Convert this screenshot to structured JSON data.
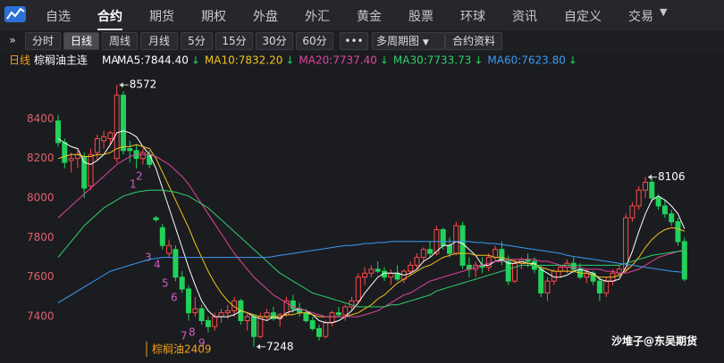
{
  "nav": {
    "tabs": [
      "自选",
      "合约",
      "期货",
      "期权",
      "外盘",
      "外汇",
      "黄金",
      "股票",
      "环球",
      "资讯",
      "自定义",
      "交易"
    ]
  },
  "toolbar": {
    "buttons": [
      "分时",
      "日线",
      "周线",
      "月线",
      "5分",
      "15分",
      "30分",
      "60分"
    ],
    "multi": "多周期图",
    "info": "合约资料"
  },
  "chart_info": {
    "period": "日线",
    "symbol": "棕榈油主连",
    "ma_prefix": "MA"
  },
  "chart_data": {
    "type": "candlestick",
    "up_color": "#ff4a4a",
    "down_color": "#22d15a",
    "ylim": [
      7220,
      8600
    ],
    "yticks": [
      7400,
      7600,
      7800,
      8000,
      8200,
      8400
    ],
    "open": [
      8390,
      8280,
      8190,
      8200,
      8210,
      8060,
      8230,
      8290,
      8300,
      8200,
      8520,
      8250,
      8240,
      8200,
      8220,
      7900,
      7850,
      7720,
      7740,
      7600,
      7540,
      7420,
      7440,
      7380,
      7350,
      7400,
      7420,
      7430,
      7480,
      7380,
      7400,
      7300,
      7400,
      7420,
      7390,
      7410,
      7480,
      7440,
      7420,
      7380,
      7340,
      7300,
      7370,
      7420,
      7410,
      7450,
      7480,
      7600,
      7620,
      7640,
      7630,
      7600,
      7620,
      7590,
      7630,
      7660,
      7700,
      7740,
      7720,
      7840,
      7760,
      7720,
      7860,
      7660,
      7640,
      7660,
      7650,
      7700,
      7740,
      7680,
      7580,
      7670,
      7690,
      7680,
      7640,
      7520,
      7580,
      7630,
      7650,
      7670,
      7640,
      7600,
      7620,
      7580,
      7520,
      7580,
      7620,
      7640,
      7900,
      7960,
      8040,
      8080,
      8000,
      7960,
      7920,
      7880,
      7780
    ],
    "high": [
      8420,
      8300,
      8230,
      8240,
      8230,
      8250,
      8320,
      8340,
      8340,
      8572,
      8540,
      8290,
      8270,
      8250,
      8240,
      7910,
      7870,
      7790,
      7760,
      7630,
      7560,
      7500,
      7460,
      7400,
      7420,
      7440,
      7460,
      7500,
      7490,
      7420,
      7410,
      7420,
      7440,
      7450,
      7420,
      7500,
      7510,
      7470,
      7440,
      7400,
      7360,
      7380,
      7430,
      7450,
      7460,
      7500,
      7620,
      7650,
      7660,
      7680,
      7650,
      7640,
      7660,
      7640,
      7680,
      7720,
      7750,
      7780,
      7860,
      7850,
      7800,
      7880,
      7880,
      7700,
      7680,
      7700,
      7720,
      7760,
      7780,
      7710,
      7690,
      7700,
      7720,
      7700,
      7660,
      7600,
      7640,
      7660,
      7690,
      7700,
      7670,
      7640,
      7630,
      7600,
      7600,
      7640,
      7660,
      7920,
      7980,
      8060,
      8106,
      8100,
      8020,
      7990,
      7940,
      7900,
      7800
    ],
    "low": [
      8260,
      8150,
      8130,
      8150,
      8000,
      8040,
      8190,
      8250,
      8270,
      8180,
      8220,
      8180,
      8150,
      8170,
      8150,
      7880,
      7740,
      7700,
      7580,
      7520,
      7380,
      7400,
      7360,
      7320,
      7330,
      7370,
      7390,
      7400,
      7360,
      7330,
      7248,
      7290,
      7380,
      7380,
      7350,
      7400,
      7420,
      7400,
      7370,
      7330,
      7280,
      7290,
      7350,
      7400,
      7380,
      7430,
      7470,
      7560,
      7600,
      7620,
      7580,
      7560,
      7580,
      7570,
      7610,
      7640,
      7680,
      7700,
      7710,
      7740,
      7700,
      7710,
      7640,
      7600,
      7600,
      7620,
      7630,
      7680,
      7660,
      7560,
      7570,
      7640,
      7650,
      7620,
      7500,
      7480,
      7560,
      7600,
      7620,
      7620,
      7590,
      7570,
      7560,
      7480,
      7500,
      7560,
      7600,
      7630,
      7880,
      7940,
      8000,
      7980,
      7940,
      7900,
      7860,
      7760,
      7580
    ],
    "close": [
      8280,
      8180,
      8200,
      8220,
      8050,
      8220,
      8300,
      8310,
      8330,
      8520,
      8240,
      8240,
      8200,
      8230,
      8170,
      7890,
      7760,
      7760,
      7600,
      7540,
      7420,
      7440,
      7380,
      7350,
      7400,
      7420,
      7430,
      7480,
      7380,
      7400,
      7300,
      7400,
      7420,
      7390,
      7410,
      7480,
      7440,
      7420,
      7380,
      7340,
      7300,
      7370,
      7420,
      7410,
      7450,
      7480,
      7600,
      7620,
      7640,
      7630,
      7600,
      7620,
      7590,
      7630,
      7660,
      7700,
      7740,
      7720,
      7840,
      7760,
      7720,
      7860,
      7660,
      7640,
      7660,
      7650,
      7700,
      7740,
      7680,
      7580,
      7670,
      7690,
      7680,
      7640,
      7520,
      7580,
      7630,
      7650,
      7670,
      7640,
      7600,
      7620,
      7580,
      7520,
      7580,
      7620,
      7640,
      7900,
      7960,
      8040,
      8080,
      8000,
      7960,
      7920,
      7880,
      7780,
      7590
    ],
    "series": [
      {
        "name": "MA5:7844.40",
        "color": "#ffffff",
        "values": [
          8300,
          8280,
          8260,
          8250,
          8180,
          8170,
          8190,
          8220,
          8270,
          8330,
          8340,
          8330,
          8310,
          8260,
          8220,
          8150,
          8050,
          7950,
          7850,
          7750,
          7650,
          7560,
          7480,
          7430,
          7400,
          7400,
          7400,
          7410,
          7430,
          7420,
          7400,
          7390,
          7380,
          7400,
          7390,
          7420,
          7430,
          7440,
          7430,
          7410,
          7380,
          7370,
          7370,
          7380,
          7400,
          7430,
          7470,
          7520,
          7560,
          7600,
          7620,
          7620,
          7620,
          7610,
          7620,
          7640,
          7680,
          7700,
          7730,
          7760,
          7760,
          7780,
          7770,
          7740,
          7710,
          7660,
          7660,
          7680,
          7690,
          7670,
          7670,
          7680,
          7670,
          7670,
          7640,
          7620,
          7600,
          7600,
          7610,
          7630,
          7640,
          7630,
          7620,
          7590,
          7580,
          7580,
          7590,
          7650,
          7730,
          7830,
          7920,
          7990,
          8010,
          7990,
          7960,
          7920,
          7844.4
        ]
      },
      {
        "name": "MA10:7832.20",
        "color": "#f2c41d",
        "values": [
          8200,
          8210,
          8220,
          8220,
          8210,
          8210,
          8220,
          8220,
          8230,
          8250,
          8260,
          8260,
          8270,
          8260,
          8250,
          8200,
          8130,
          8060,
          7990,
          7920,
          7850,
          7770,
          7700,
          7630,
          7570,
          7520,
          7480,
          7450,
          7430,
          7420,
          7410,
          7400,
          7400,
          7400,
          7400,
          7410,
          7410,
          7420,
          7420,
          7410,
          7400,
          7400,
          7400,
          7400,
          7400,
          7410,
          7420,
          7440,
          7460,
          7490,
          7510,
          7540,
          7570,
          7590,
          7610,
          7630,
          7650,
          7660,
          7680,
          7700,
          7710,
          7720,
          7720,
          7720,
          7710,
          7710,
          7710,
          7700,
          7700,
          7690,
          7680,
          7670,
          7670,
          7660,
          7650,
          7640,
          7630,
          7630,
          7630,
          7630,
          7620,
          7620,
          7610,
          7600,
          7600,
          7600,
          7610,
          7630,
          7660,
          7700,
          7750,
          7790,
          7820,
          7840,
          7850,
          7845,
          7832.2
        ]
      },
      {
        "name": "MA20:7737.40",
        "color": "#e0449f",
        "values": [
          7900,
          7930,
          7960,
          7990,
          8020,
          8050,
          8080,
          8110,
          8140,
          8170,
          8190,
          8210,
          8220,
          8220,
          8220,
          8210,
          8190,
          8170,
          8140,
          8110,
          8070,
          8020,
          7970,
          7920,
          7870,
          7820,
          7770,
          7720,
          7680,
          7640,
          7600,
          7570,
          7540,
          7510,
          7490,
          7470,
          7450,
          7440,
          7430,
          7420,
          7410,
          7400,
          7400,
          7400,
          7400,
          7400,
          7400,
          7410,
          7420,
          7430,
          7450,
          7470,
          7490,
          7510,
          7520,
          7540,
          7560,
          7580,
          7590,
          7600,
          7610,
          7620,
          7630,
          7640,
          7650,
          7660,
          7670,
          7680,
          7680,
          7690,
          7690,
          7690,
          7690,
          7690,
          7680,
          7680,
          7670,
          7660,
          7650,
          7650,
          7650,
          7640,
          7640,
          7640,
          7630,
          7630,
          7620,
          7620,
          7630,
          7640,
          7660,
          7680,
          7700,
          7710,
          7720,
          7730,
          7737.4
        ]
      },
      {
        "name": "MA30:7733.73",
        "color": "#2fcf6c",
        "values": [
          7700,
          7740,
          7780,
          7820,
          7860,
          7890,
          7920,
          7950,
          7970,
          7990,
          8010,
          8020,
          8030,
          8035,
          8040,
          8040,
          8040,
          8035,
          8030,
          8020,
          8010,
          7990,
          7970,
          7950,
          7920,
          7890,
          7860,
          7830,
          7800,
          7770,
          7740,
          7710,
          7680,
          7650,
          7620,
          7600,
          7580,
          7560,
          7540,
          7520,
          7510,
          7500,
          7490,
          7480,
          7470,
          7460,
          7450,
          7450,
          7450,
          7450,
          7450,
          7460,
          7460,
          7470,
          7480,
          7490,
          7500,
          7510,
          7530,
          7540,
          7550,
          7560,
          7570,
          7580,
          7590,
          7600,
          7610,
          7620,
          7630,
          7640,
          7650,
          7660,
          7660,
          7660,
          7660,
          7660,
          7660,
          7660,
          7660,
          7660,
          7660,
          7660,
          7660,
          7660,
          7660,
          7660,
          7660,
          7670,
          7680,
          7690,
          7700,
          7710,
          7715,
          7720,
          7725,
          7730,
          7733.73
        ]
      },
      {
        "name": "MA60:7623.80",
        "color": "#3a9cf5",
        "values": [
          7470,
          7490,
          7510,
          7530,
          7550,
          7570,
          7590,
          7610,
          7630,
          7640,
          7650,
          7660,
          7670,
          7680,
          7690,
          7695,
          7700,
          7700,
          7700,
          7700,
          7700,
          7700,
          7700,
          7700,
          7700,
          7700,
          7700,
          7700,
          7700,
          7700,
          7700,
          7700,
          7700,
          7705,
          7710,
          7715,
          7720,
          7725,
          7730,
          7735,
          7740,
          7745,
          7750,
          7755,
          7760,
          7760,
          7765,
          7770,
          7770,
          7775,
          7775,
          7780,
          7780,
          7780,
          7780,
          7780,
          7780,
          7780,
          7780,
          7780,
          7780,
          7780,
          7780,
          7780,
          7775,
          7775,
          7770,
          7770,
          7765,
          7760,
          7755,
          7750,
          7745,
          7740,
          7735,
          7730,
          7725,
          7720,
          7710,
          7705,
          7700,
          7695,
          7690,
          7685,
          7680,
          7675,
          7670,
          7665,
          7660,
          7655,
          7650,
          7645,
          7640,
          7635,
          7630,
          7627,
          7623.8
        ]
      }
    ],
    "annotations": [
      8572,
      7248,
      8106
    ],
    "wave_labels": [
      "1",
      "2",
      "3",
      "4",
      "5",
      "6",
      "7",
      "8",
      "9"
    ],
    "contract_label": "棕榈油2409"
  },
  "watermark": "沙堆子@东吴期货"
}
